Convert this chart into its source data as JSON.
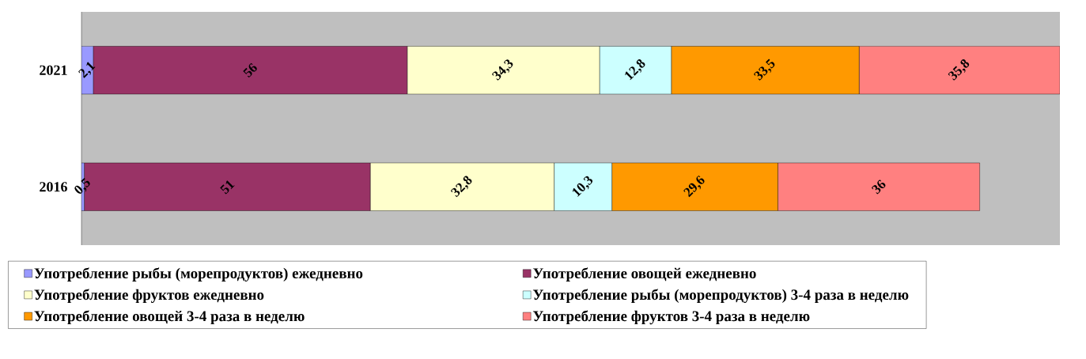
{
  "chart_data": {
    "type": "bar",
    "orientation": "horizontal",
    "stacked": true,
    "categories": [
      "2021",
      "2016"
    ],
    "legend": "bottom",
    "series": [
      {
        "name": "Употребление рыбы (морепродуктов) ежедневно",
        "color": "#9999ff",
        "values": [
          2.1,
          0.5
        ],
        "value_labels": [
          "2,1",
          "0,5"
        ]
      },
      {
        "name": "Употребление овощей ежедневно",
        "color": "#993366",
        "values": [
          56,
          51
        ],
        "value_labels": [
          "56",
          "51"
        ]
      },
      {
        "name": "Употребление фруктов ежедневно",
        "color": "#ffffcc",
        "values": [
          34.3,
          32.8
        ],
        "value_labels": [
          "34,3",
          "32,8"
        ]
      },
      {
        "name": "Употребление рыбы (морепродуктов) 3-4 раза в неделю",
        "color": "#ccffff",
        "values": [
          12.8,
          10.3
        ],
        "value_labels": [
          "12,8",
          "10,3"
        ]
      },
      {
        "name": "Употребление овощей 3-4 раза в неделю",
        "color": "#ff9900",
        "values": [
          33.5,
          29.6
        ],
        "value_labels": [
          "33,5",
          "29,6"
        ]
      },
      {
        "name": "Употребление фруктов 3-4 раза в неделю",
        "color": "#ff8080",
        "values": [
          35.8,
          36
        ],
        "value_labels": [
          "35,8",
          "36"
        ]
      }
    ]
  }
}
